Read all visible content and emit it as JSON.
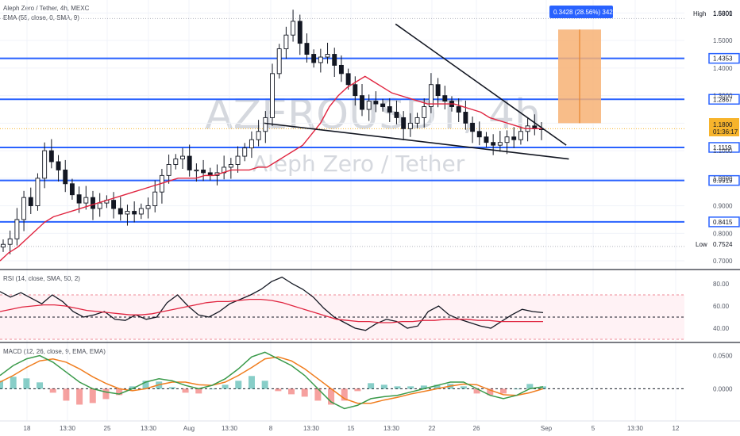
{
  "header": {
    "title": "Aleph Zero / Tether, 4h, MEXC",
    "ema_legend": "EMA (55, close, 0, SMA, 9)",
    "rsi_legend": "RSI (14, close, SMA, 50, 2)",
    "macd_legend": "MACD (12, 26, close, 9, EMA, EMA)"
  },
  "watermark": {
    "symbol": "AZEROUSDT, 4h",
    "name": "Aleph Zero / Tether"
  },
  "position_tool": {
    "label": "0.3428 (28.56%) 3428"
  },
  "price_tags": {
    "high_label": "High",
    "high_value": "1.5801",
    "low_label": "Low",
    "low_value": "0.7524",
    "last_value": "1.1800",
    "countdown": "01:36:17"
  },
  "levels": [
    "1.4353",
    "1.2867",
    "1.1119",
    "0.9919",
    "0.8415"
  ],
  "colors": {
    "level": "#2962ff",
    "ema": "#e0243f",
    "macd": "#3a9a4a",
    "signal": "#f07d1e",
    "up": "#26a69a",
    "down": "#ef5350",
    "candle": "#131722",
    "box": "#f7b274"
  },
  "chart_data": [
    {
      "type": "line",
      "pane": "price",
      "x_ticks": [
        "18",
        "13:30",
        "25",
        "13:30",
        "Aug",
        "13:30",
        "8",
        "13:30",
        "15",
        "13:30",
        "22",
        "26",
        "Sep",
        "5",
        "13:30",
        "12"
      ],
      "y_ticks": [
        "0.7000",
        "0.8000",
        "0.9000",
        "1.0000",
        "1.1000",
        "1.2000",
        "1.3000",
        "1.4000",
        "1.5000",
        "1.6000"
      ],
      "ylim": [
        0.68,
        1.63
      ],
      "close": [
        0.76,
        0.78,
        0.85,
        0.93,
        0.9,
        1.0,
        1.1,
        1.06,
        1.03,
        0.98,
        0.94,
        0.91,
        0.93,
        0.89,
        0.91,
        0.92,
        0.89,
        0.87,
        0.88,
        0.87,
        0.89,
        0.9,
        0.95,
        1.01,
        1.05,
        1.07,
        1.08,
        1.03,
        1.03,
        1.02,
        1.01,
        1.02,
        1.04,
        1.05,
        1.08,
        1.11,
        1.14,
        1.17,
        1.22,
        1.38,
        1.47,
        1.52,
        1.57,
        1.49,
        1.45,
        1.42,
        1.44,
        1.45,
        1.41,
        1.38,
        1.34,
        1.3,
        1.25,
        1.28,
        1.27,
        1.26,
        1.24,
        1.22,
        1.18,
        1.2,
        1.22,
        1.26,
        1.34,
        1.3,
        1.28,
        1.26,
        1.24,
        1.2,
        1.17,
        1.15,
        1.13,
        1.12,
        1.13,
        1.15,
        1.14,
        1.17,
        1.19,
        1.18,
        1.18
      ],
      "ema55": [
        0.7,
        0.73,
        0.75,
        0.78,
        0.81,
        0.84,
        0.86,
        0.87,
        0.88,
        0.89,
        0.9,
        0.91,
        0.92,
        0.93,
        0.94,
        0.95,
        0.96,
        0.97,
        0.98,
        0.99,
        1.0,
        1.0,
        1.0,
        1.01,
        1.01,
        1.02,
        1.03,
        1.03,
        1.03,
        1.04,
        1.04,
        1.06,
        1.08,
        1.1,
        1.12,
        1.16,
        1.2,
        1.26,
        1.3,
        1.33,
        1.35,
        1.37,
        1.35,
        1.33,
        1.31,
        1.3,
        1.29,
        1.28,
        1.27,
        1.27,
        1.27,
        1.27,
        1.26,
        1.25,
        1.24,
        1.22,
        1.21,
        1.2,
        1.19,
        1.18,
        1.18,
        1.18
      ],
      "levels": [
        1.4353,
        1.2867,
        1.1119,
        0.9919,
        0.8415
      ],
      "high": 1.5801,
      "low": 0.7524,
      "last": 1.18,
      "wedge_upper": [
        [
          15.0,
          1.56
        ],
        [
          21.5,
          1.12
        ]
      ],
      "wedge_lower": [
        [
          10.0,
          1.2
        ],
        [
          21.6,
          1.07
        ]
      ],
      "position_box": {
        "entry": 1.2,
        "target": 1.54
      }
    },
    {
      "type": "line",
      "pane": "rsi",
      "y_ticks": [
        "40.00",
        "60.00",
        "80.00"
      ],
      "ylim": [
        30,
        90
      ],
      "bands": [
        70,
        50,
        30
      ],
      "rsi": [
        73,
        68,
        72,
        67,
        62,
        70,
        64,
        55,
        50,
        52,
        55,
        48,
        47,
        52,
        48,
        50,
        63,
        70,
        60,
        52,
        50,
        55,
        62,
        66,
        70,
        75,
        82,
        86,
        80,
        75,
        68,
        58,
        50,
        45,
        40,
        38,
        44,
        48,
        46,
        40,
        42,
        55,
        60,
        52,
        48,
        45,
        42,
        40,
        46,
        52,
        57,
        55,
        54
      ],
      "rsi_ma": [
        55,
        57,
        59,
        60,
        61,
        61,
        60,
        58,
        56,
        55,
        54,
        53,
        52,
        52,
        53,
        55,
        57,
        59,
        61,
        63,
        64,
        64,
        65,
        66,
        66,
        65,
        63,
        60,
        57,
        54,
        51,
        48,
        47,
        46,
        46,
        45,
        45,
        46,
        46,
        47,
        47,
        48,
        48,
        48,
        47,
        47,
        46,
        46,
        46,
        46,
        46
      ]
    },
    {
      "type": "bar",
      "pane": "macd",
      "y_ticks": [
        "0.0000",
        "0.0500"
      ],
      "ylim": [
        -0.045,
        0.065
      ],
      "macd": [
        0.02,
        0.035,
        0.045,
        0.05,
        0.04,
        0.025,
        0.01,
        0.0,
        -0.005,
        -0.008,
        0.0,
        0.01,
        0.015,
        0.012,
        0.005,
        0.0,
        0.005,
        0.015,
        0.03,
        0.048,
        0.055,
        0.045,
        0.035,
        0.02,
        0.0,
        -0.02,
        -0.03,
        -0.025,
        -0.015,
        -0.012,
        -0.01,
        -0.005,
        0.0,
        0.005,
        0.01,
        0.01,
        0.0,
        -0.01,
        -0.015,
        -0.01,
        0.0,
        0.003
      ],
      "signal": [
        0.01,
        0.02,
        0.032,
        0.042,
        0.045,
        0.04,
        0.03,
        0.018,
        0.008,
        0.0,
        -0.003,
        0.0,
        0.006,
        0.01,
        0.01,
        0.006,
        0.005,
        0.01,
        0.02,
        0.032,
        0.045,
        0.048,
        0.042,
        0.03,
        0.015,
        0.0,
        -0.015,
        -0.022,
        -0.022,
        -0.017,
        -0.013,
        -0.008,
        -0.004,
        0.0,
        0.004,
        0.007,
        0.006,
        -0.002,
        -0.009,
        -0.01,
        -0.006,
        0.0
      ],
      "histogram_colors": [
        "#26a69a",
        "#ef5350"
      ]
    }
  ]
}
